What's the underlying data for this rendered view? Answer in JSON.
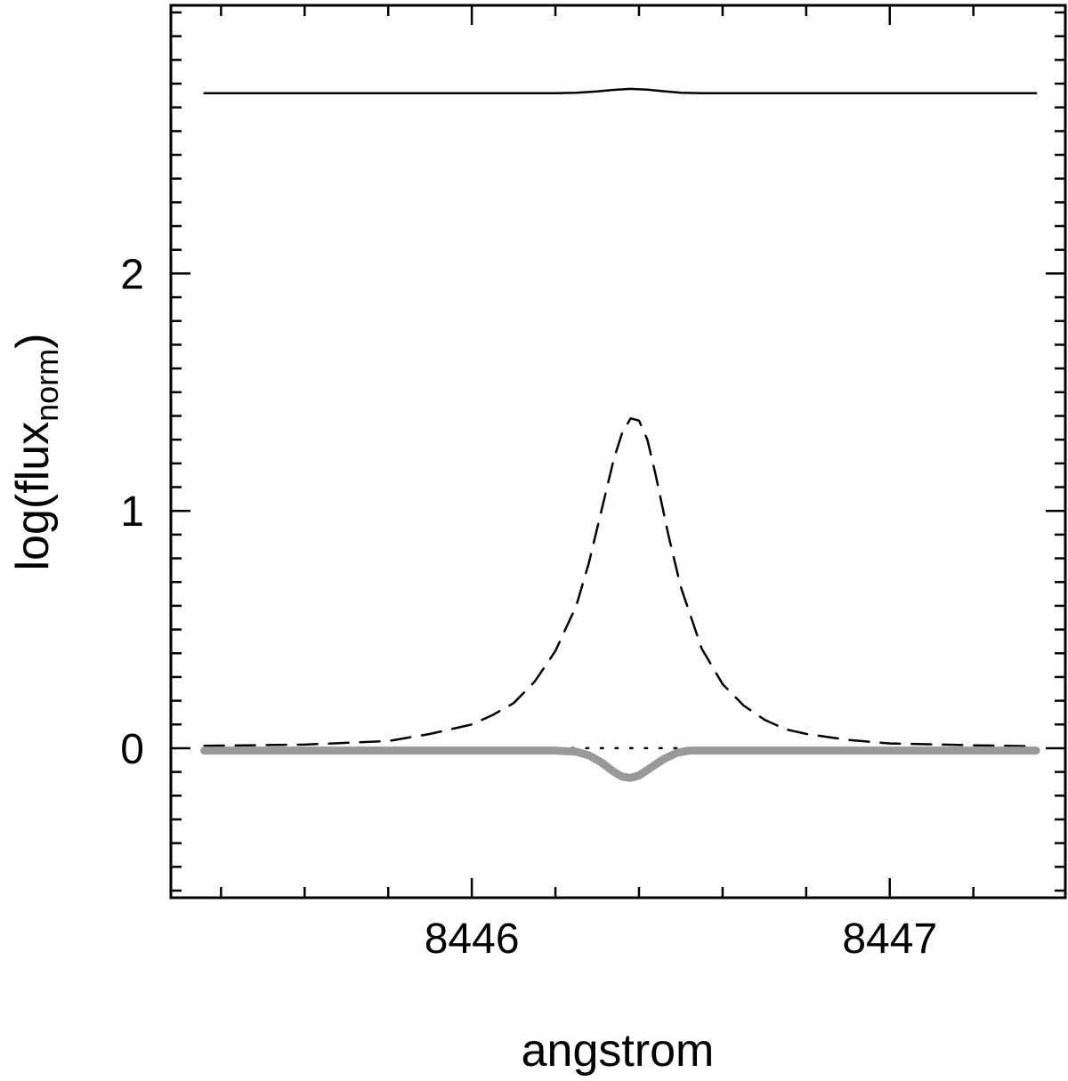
{
  "chart_data": {
    "type": "line",
    "title": "",
    "xlabel": "angstrom",
    "ylabel": {
      "base": "log(flux",
      "subscript": "norm",
      "suffix": ")"
    },
    "xlim": [
      8445.28,
      8447.42
    ],
    "ylim": [
      -0.63,
      3.13
    ],
    "x_ticks": [
      {
        "value": 8446,
        "label": "8446"
      },
      {
        "value": 8447,
        "label": "8447"
      }
    ],
    "y_ticks": [
      {
        "value": 0,
        "label": "0"
      },
      {
        "value": 1,
        "label": "1"
      },
      {
        "value": 2,
        "label": "2"
      }
    ],
    "x_minor_step": 0.2,
    "x_minor_start": 8445.4,
    "x_minor_end": 8447.35,
    "y_minor_step": 0.1,
    "grid": false,
    "legend": "none",
    "series": [
      {
        "style": "solid-black",
        "color": "#000000",
        "x": [
          8445.36,
          8445.6,
          8445.8,
          8446.0,
          8446.1,
          8446.2,
          8446.25,
          8446.3,
          8446.34,
          8446.38,
          8446.42,
          8446.46,
          8446.5,
          8446.55,
          8446.6,
          8446.8,
          8447.0,
          8447.2,
          8447.35
        ],
        "y": [
          2.76,
          2.76,
          2.76,
          2.76,
          2.76,
          2.76,
          2.762,
          2.767,
          2.774,
          2.778,
          2.775,
          2.768,
          2.762,
          2.76,
          2.76,
          2.76,
          2.76,
          2.76,
          2.76
        ]
      },
      {
        "style": "dashed-black",
        "color": "#000000",
        "x": [
          8445.36,
          8445.6,
          8445.8,
          8445.9,
          8446.0,
          8446.05,
          8446.1,
          8446.15,
          8446.2,
          8446.25,
          8446.28,
          8446.31,
          8446.34,
          8446.36,
          8446.38,
          8446.4,
          8446.42,
          8446.44,
          8446.47,
          8446.5,
          8446.55,
          8446.6,
          8446.65,
          8446.7,
          8446.75,
          8446.8,
          8446.9,
          8447.0,
          8447.2,
          8447.35
        ],
        "y": [
          0.01,
          0.015,
          0.03,
          0.06,
          0.1,
          0.14,
          0.19,
          0.28,
          0.41,
          0.6,
          0.78,
          1.0,
          1.22,
          1.33,
          1.39,
          1.38,
          1.3,
          1.15,
          0.9,
          0.68,
          0.42,
          0.27,
          0.18,
          0.12,
          0.08,
          0.06,
          0.035,
          0.02,
          0.012,
          0.008
        ]
      },
      {
        "style": "dotted-black",
        "color": "#000000",
        "x": [
          8445.36,
          8447.35
        ],
        "y": [
          0.0,
          0.0
        ]
      },
      {
        "style": "thick-gray",
        "color": "#999999",
        "x": [
          8445.36,
          8446.2,
          8446.25,
          8446.28,
          8446.31,
          8446.34,
          8446.36,
          8446.38,
          8446.4,
          8446.43,
          8446.46,
          8446.49,
          8446.52,
          8446.6,
          8447.35
        ],
        "y": [
          -0.01,
          -0.01,
          -0.015,
          -0.03,
          -0.06,
          -0.1,
          -0.12,
          -0.125,
          -0.115,
          -0.08,
          -0.045,
          -0.02,
          -0.01,
          -0.01,
          -0.01
        ]
      }
    ]
  }
}
